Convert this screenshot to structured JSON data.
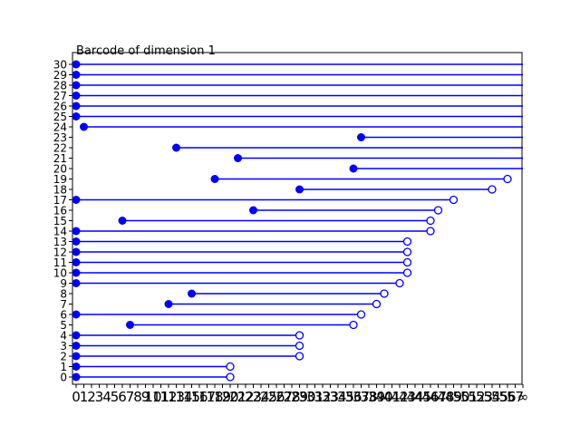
{
  "chart_data": {
    "type": "barcode",
    "title": "Barcode of dimension 1",
    "xlabel": "",
    "ylabel": "",
    "xlim": [
      0,
      58
    ],
    "ylim": [
      0,
      30
    ],
    "grid": false,
    "x_ticks": [
      "0",
      "1",
      "2",
      "3",
      "4",
      "5",
      "6",
      "7",
      "8",
      "9",
      "10",
      "11",
      "12",
      "13",
      "14",
      "15",
      "16",
      "17",
      "18",
      "19",
      "20",
      "21",
      "22",
      "23",
      "24",
      "25",
      "26",
      "27",
      "28",
      "29",
      "30",
      "31",
      "32",
      "33",
      "34",
      "35",
      "36",
      "37",
      "38",
      "39",
      "40",
      "41",
      "42",
      "43",
      "44",
      "45",
      "46",
      "47",
      "48",
      "49",
      "50",
      "51",
      "52",
      "53",
      "54",
      "55",
      "56",
      "57",
      "∞"
    ],
    "y_ticks": [
      "0",
      "1",
      "2",
      "3",
      "4",
      "5",
      "6",
      "7",
      "8",
      "9",
      "10",
      "11",
      "12",
      "13",
      "14",
      "15",
      "16",
      "17",
      "18",
      "19",
      "20",
      "21",
      "22",
      "23",
      "24",
      "25",
      "26",
      "27",
      "28",
      "29",
      "30"
    ],
    "color": "#0000ff",
    "bars": [
      {
        "index": 0,
        "birth": 0,
        "death": 20
      },
      {
        "index": 1,
        "birth": 0,
        "death": 20
      },
      {
        "index": 2,
        "birth": 0,
        "death": 29
      },
      {
        "index": 3,
        "birth": 0,
        "death": 29
      },
      {
        "index": 4,
        "birth": 0,
        "death": 29
      },
      {
        "index": 5,
        "birth": 7,
        "death": 36
      },
      {
        "index": 6,
        "birth": 0,
        "death": 37
      },
      {
        "index": 7,
        "birth": 12,
        "death": 39
      },
      {
        "index": 8,
        "birth": 15,
        "death": 40
      },
      {
        "index": 9,
        "birth": 0,
        "death": 42
      },
      {
        "index": 10,
        "birth": 0,
        "death": 43
      },
      {
        "index": 11,
        "birth": 0,
        "death": 43
      },
      {
        "index": 12,
        "birth": 0,
        "death": 43
      },
      {
        "index": 13,
        "birth": 0,
        "death": 43
      },
      {
        "index": 14,
        "birth": 0,
        "death": 46
      },
      {
        "index": 15,
        "birth": 6,
        "death": 46
      },
      {
        "index": 16,
        "birth": 23,
        "death": 47
      },
      {
        "index": 17,
        "birth": 0,
        "death": 49
      },
      {
        "index": 18,
        "birth": 29,
        "death": 54
      },
      {
        "index": 19,
        "birth": 18,
        "death": 56
      },
      {
        "index": 20,
        "birth": 36,
        "death": null
      },
      {
        "index": 21,
        "birth": 21,
        "death": null
      },
      {
        "index": 22,
        "birth": 13,
        "death": null
      },
      {
        "index": 23,
        "birth": 37,
        "death": null
      },
      {
        "index": 24,
        "birth": 1,
        "death": null
      },
      {
        "index": 25,
        "birth": 0,
        "death": null
      },
      {
        "index": 26,
        "birth": 0,
        "death": null
      },
      {
        "index": 27,
        "birth": 0,
        "death": null
      },
      {
        "index": 28,
        "birth": 0,
        "death": null
      },
      {
        "index": 29,
        "birth": 0,
        "death": null
      },
      {
        "index": 30,
        "birth": 0,
        "death": null
      }
    ]
  }
}
